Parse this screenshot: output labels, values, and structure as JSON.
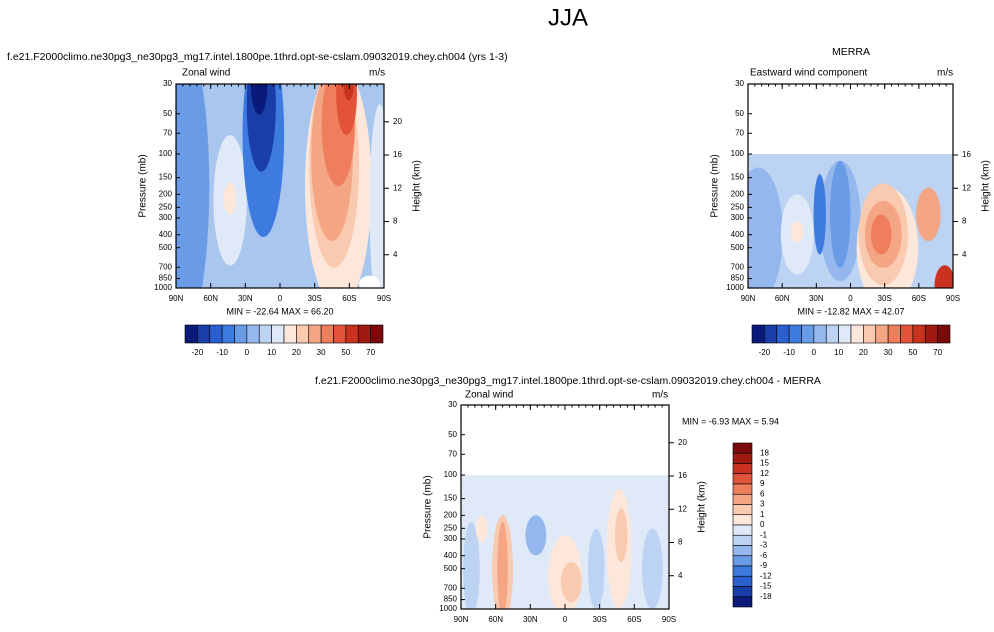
{
  "title": "JJA",
  "panels": [
    {
      "title": "f.e21.F2000climo.ne30pg3_ne30pg3_mg17.intel.1800pe.1thrd.opt-se-cslam.09032019.chey.ch004 (yrs 1-3)",
      "left_label": "Zonal wind",
      "right_label": "m/s",
      "y_label": "Pressure (mb)",
      "y2_label": "Height (km)",
      "yticks": [
        30,
        50,
        70,
        100,
        150,
        200,
        250,
        300,
        400,
        500,
        700,
        850,
        1000
      ],
      "y2ticks": [
        20,
        16,
        12,
        8,
        4
      ],
      "xticks": [
        "90N",
        "60N",
        "30N",
        "0",
        "30S",
        "60S",
        "90S"
      ],
      "min_max": "MIN = -22.64   MAX = 66.20",
      "colorbar": [
        -20,
        -10,
        0,
        10,
        20,
        30,
        50,
        70
      ]
    },
    {
      "title": "MERRA",
      "left_label": "Eastward wind component",
      "right_label": "m/s",
      "y_label": "Pressure (mb)",
      "y2_label": "Height (km)",
      "yticks": [
        30,
        50,
        70,
        100,
        150,
        200,
        250,
        300,
        400,
        500,
        700,
        850,
        1000
      ],
      "y2ticks": [
        16,
        12,
        8,
        4
      ],
      "xticks": [
        "90N",
        "60N",
        "30N",
        "0",
        "30S",
        "60S",
        "90S"
      ],
      "min_max": "MIN = -12.82   MAX = 42.07",
      "colorbar": [
        -20,
        -10,
        0,
        10,
        20,
        30,
        50,
        70
      ]
    },
    {
      "title": "f.e21.F2000climo.ne30pg3_ne30pg3_mg17.intel.1800pe.1thrd.opt-se-cslam.09032019.chey.ch004 - MERRA",
      "left_label": "Zonal wind",
      "right_label": "m/s",
      "y_label": "Pressure (mb)",
      "y2_label": "Height (km)",
      "yticks": [
        30,
        50,
        70,
        100,
        150,
        200,
        250,
        300,
        400,
        500,
        700,
        850,
        1000
      ],
      "y2ticks": [
        20,
        16,
        12,
        8,
        4
      ],
      "xticks": [
        "90N",
        "60N",
        "30N",
        "0",
        "30S",
        "60S",
        "90S"
      ],
      "min_max": "MIN = -6.93   MAX =  5.94",
      "colorbar": [
        18,
        15,
        12,
        9,
        6,
        3,
        1,
        0,
        -1,
        -3,
        -6,
        -9,
        -12,
        -15,
        -18
      ]
    }
  ]
}
